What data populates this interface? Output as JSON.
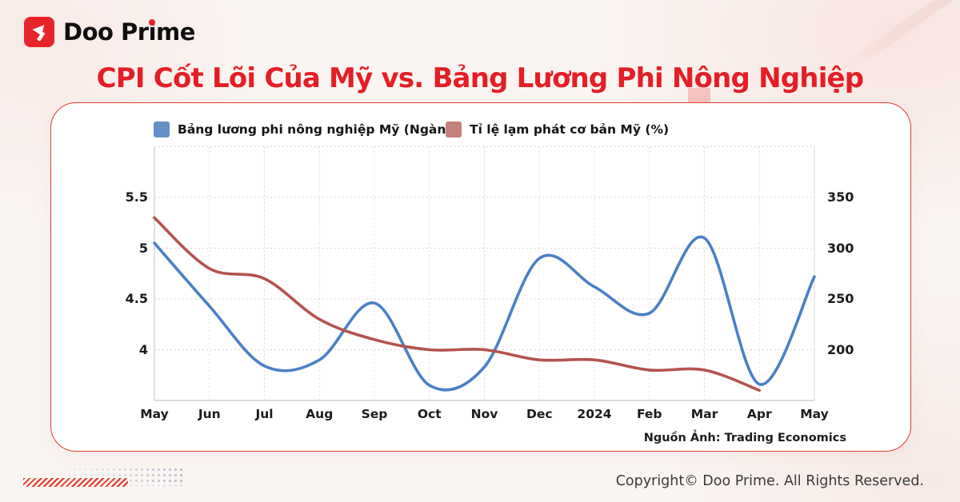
{
  "logo": {
    "part_a": "Doo Pr",
    "part_i": "i",
    "part_b": "me"
  },
  "header": {
    "accent_color": "#e41e26"
  },
  "card": {
    "source": "Nguồn Ảnh: Trading Economics"
  },
  "footer": {
    "copyright": "Copyright© Doo Prime. All Rights Reserved."
  },
  "chart_data": {
    "type": "line",
    "title": "CPI Cốt Lõi Của Mỹ vs. Bảng Lương Phi Nông Nghiệp",
    "categories": [
      "May",
      "Jun",
      "Jul",
      "Aug",
      "Sep",
      "Oct",
      "Nov",
      "Dec",
      "2024",
      "Feb",
      "Mar",
      "Apr",
      "May"
    ],
    "series": [
      {
        "name": "Bảng lương phi nông nghiệp Mỹ (Ngàn)",
        "axis": "right",
        "line_color": "#4a80c6",
        "swatch_color": "#6490c8",
        "values": [
          305,
          243,
          184,
          190,
          246,
          165,
          183,
          290,
          262,
          236,
          310,
          166,
          272
        ]
      },
      {
        "name": "Tỉ lệ lạm phát cơ bản Mỹ (%)",
        "axis": "left",
        "line_color": "#b4534e",
        "swatch_color": "#c48079",
        "values": [
          5.3,
          4.8,
          4.7,
          4.3,
          4.1,
          4.0,
          4.0,
          3.9,
          3.9,
          3.8,
          3.8,
          3.6
        ]
      }
    ],
    "left_axis": {
      "tick_labels": [
        "5.5",
        "5",
        "4.5",
        "4"
      ],
      "ticks": [
        5.5,
        5,
        4.5,
        4
      ],
      "range": [
        3.5,
        6.0
      ]
    },
    "right_axis": {
      "tick_labels": [
        "350",
        "300",
        "250",
        "200"
      ],
      "ticks": [
        350,
        300,
        250,
        200
      ],
      "range": [
        150,
        400
      ]
    },
    "grid": "dotted",
    "legend_position": "top",
    "smoothed": true
  }
}
